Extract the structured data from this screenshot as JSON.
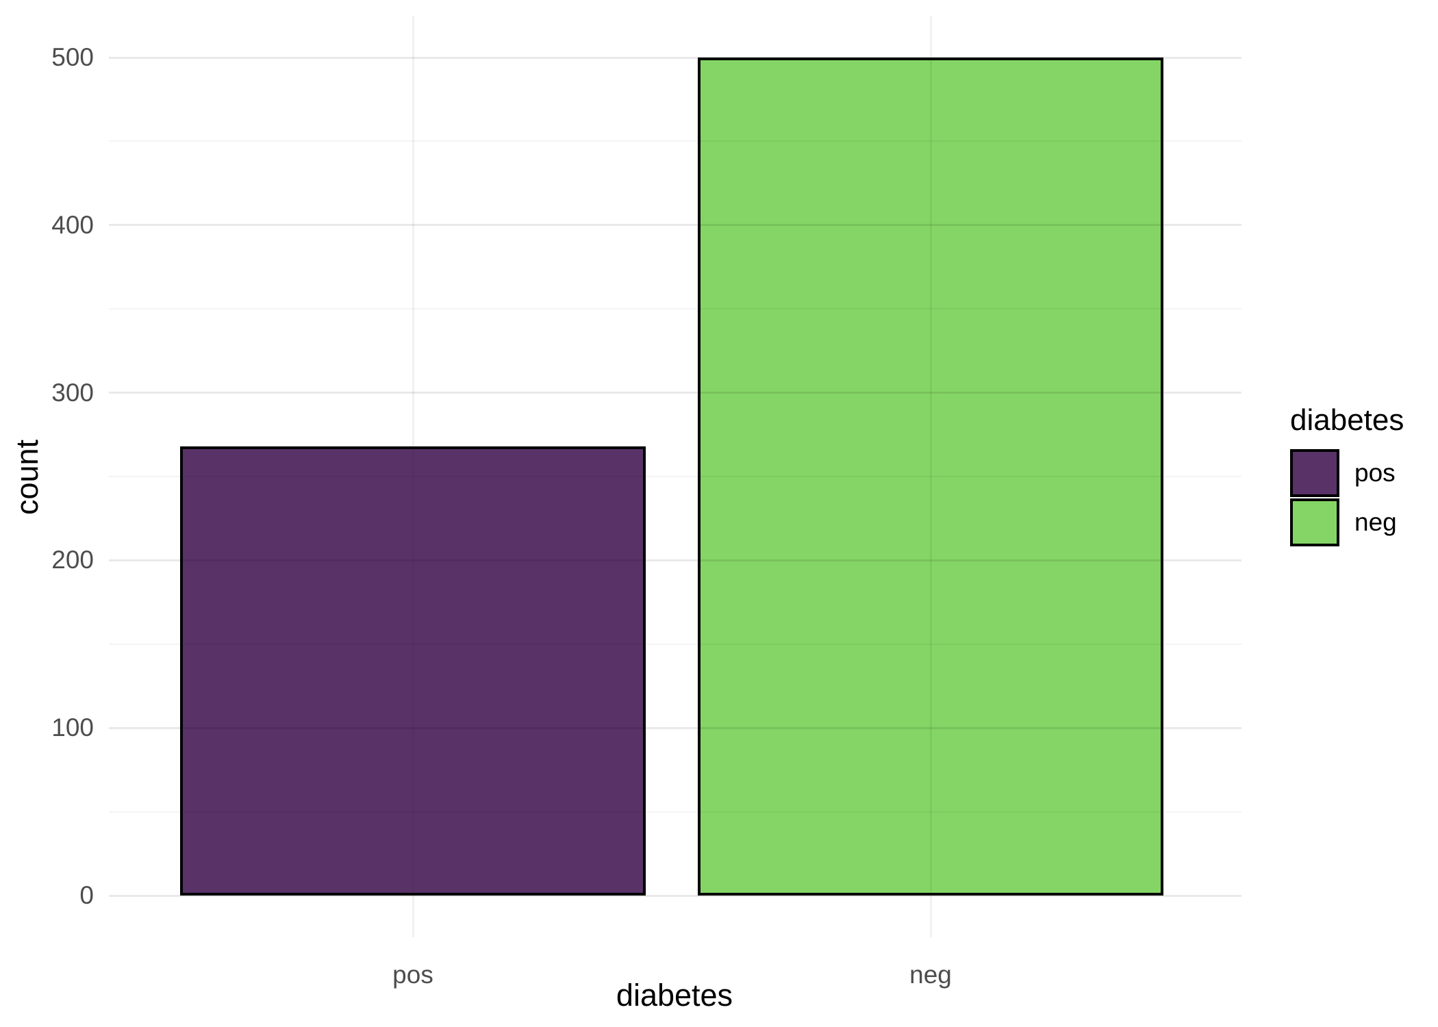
{
  "chart_data": {
    "type": "bar",
    "title": "",
    "categories": [
      "pos",
      "neg"
    ],
    "values": [
      268,
      500
    ],
    "bar_colors": [
      "#593268",
      "#84D565"
    ],
    "bar_outline_color": "#000000",
    "xlabel": "diabetes",
    "ylabel": "count",
    "ylim": [
      0,
      500
    ],
    "yticks": [
      0,
      100,
      200,
      300,
      400,
      500
    ],
    "ytick_labels": [
      "0",
      "100",
      "200",
      "300",
      "400",
      "500"
    ],
    "grid": "horizontal major+minor and vertical major gridlines, light gray, no axis lines (theme_minimal)",
    "background_color": "#FFFFFF",
    "gridline_color": "#E8E8E8",
    "tick_label_color": "#4D4D4D",
    "axis_title_color": "#000000",
    "legend": {
      "position": "right",
      "title": "diabetes",
      "entries": [
        {
          "label": "pos",
          "color": "#593268"
        },
        {
          "label": "neg",
          "color": "#84D565"
        }
      ]
    }
  }
}
